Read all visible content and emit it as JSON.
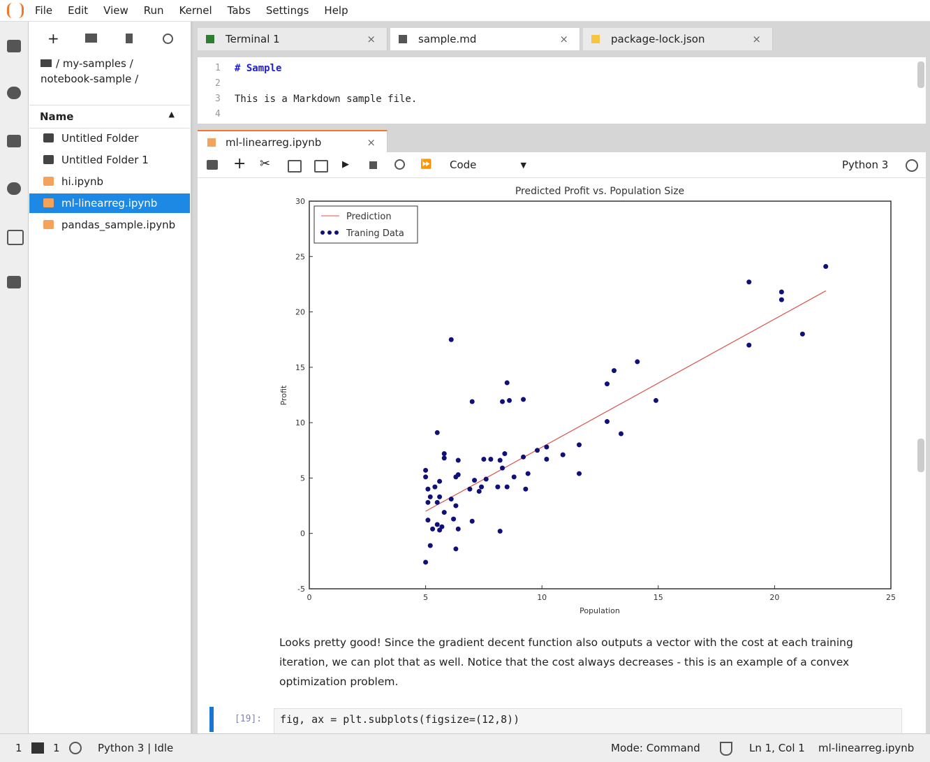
{
  "menu": [
    "File",
    "Edit",
    "View",
    "Run",
    "Kernel",
    "Tabs",
    "Settings",
    "Help"
  ],
  "file_browser": {
    "breadcrumb": "/ my-samples / notebook-sample /",
    "column": "Name",
    "files": [
      "Untitled Folder",
      "Untitled Folder 1",
      "hi.ipynb",
      "ml-linearreg.ipynb",
      "pandas_sample.ipynb"
    ]
  },
  "tabs": [
    "Terminal 1",
    "sample.md",
    "package-lock.json"
  ],
  "editor": {
    "lines": [
      {
        "n": 1,
        "text": "# Sample"
      },
      {
        "n": 2
      },
      {
        "n": 3,
        "text": "This is a Markdown sample file."
      },
      {
        "n": 4
      }
    ]
  },
  "notebook": {
    "tab": "ml-linearreg.ipynb",
    "cell_type": "Code",
    "kernel": "Python 3",
    "markdown": "Looks pretty good! Since the gradient decent function also outputs a vector with the cost at each training iteration, we can plot that as well. Notice that the cost always decreases - this is an example of a convex optimization problem.",
    "code_prompt": "[19]:",
    "code": "fig, ax = plt.subplots(figsize=(12,8))"
  },
  "status_bar": {
    "terminals": 1,
    "kernels": 1,
    "kernel_status": "Python 3 | Idle",
    "mode": "Mode: Command",
    "cursor": "Ln 1, Col 1",
    "file": "ml-linearreg.ipynb"
  },
  "chart_data": {
    "type": "scatter",
    "title": "Predicted Profit vs. Population Size",
    "x_label": "Population",
    "y_label": "Profit",
    "xlim": [
      0,
      25
    ],
    "xticks": [
      0,
      5,
      10,
      15,
      20,
      25
    ],
    "ylim": [
      -5,
      30
    ],
    "yticks": [
      -5,
      0,
      5,
      10,
      15,
      20,
      25,
      30
    ],
    "legend": "upper left",
    "series": [
      {
        "name": "Prediction",
        "type": "line",
        "color": "#d9534f",
        "x": [
          5,
          22.2
        ],
        "values": [
          2.0,
          21.9
        ]
      },
      {
        "name": "Traning Data",
        "type": "scatter",
        "color": "#10107a",
        "x": [
          18.9,
          20.3,
          20.3,
          22.2,
          18.9,
          21.2,
          6.1,
          14.1,
          13.1,
          12.8,
          8.5,
          7.0,
          8.3,
          8.6,
          9.2,
          14.9,
          12.8,
          13.4,
          5.5,
          11.6,
          10.2,
          9.8,
          10.2,
          10.9,
          11.6,
          9.2,
          8.4,
          5.8,
          5.8,
          6.4,
          7.5,
          7.8,
          8.2,
          8.3,
          9.4,
          8.8,
          9.3,
          8.5,
          8.1,
          7.4,
          7.3,
          7.1,
          6.9,
          7.6,
          6.4,
          6.3,
          5.6,
          5.0,
          5.0,
          5.1,
          5.4,
          5.2,
          5.6,
          6.1,
          5.5,
          5.1,
          5.8,
          6.3,
          6.2,
          5.1,
          5.5,
          5.7,
          5.3,
          5.6,
          6.4,
          5.2,
          6.3,
          7.0,
          8.2,
          5.0
        ],
        "values": [
          22.7,
          21.8,
          21.1,
          24.1,
          17.0,
          18.0,
          17.5,
          15.5,
          14.7,
          13.5,
          13.6,
          11.9,
          11.9,
          12.0,
          12.1,
          12.0,
          10.1,
          9.0,
          9.1,
          8.0,
          7.8,
          7.5,
          6.7,
          7.1,
          5.4,
          6.9,
          7.2,
          7.2,
          6.8,
          6.6,
          6.7,
          6.7,
          6.6,
          5.9,
          5.4,
          5.1,
          4.0,
          4.2,
          4.2,
          4.2,
          3.8,
          4.8,
          4.0,
          4.9,
          5.3,
          5.1,
          4.7,
          5.7,
          5.1,
          4.0,
          4.2,
          3.3,
          3.3,
          3.1,
          2.8,
          2.8,
          1.9,
          2.5,
          1.3,
          1.2,
          0.8,
          0.6,
          0.4,
          0.3,
          0.4,
          -1.1,
          -1.4,
          1.1,
          0.2,
          -2.6
        ]
      }
    ]
  }
}
